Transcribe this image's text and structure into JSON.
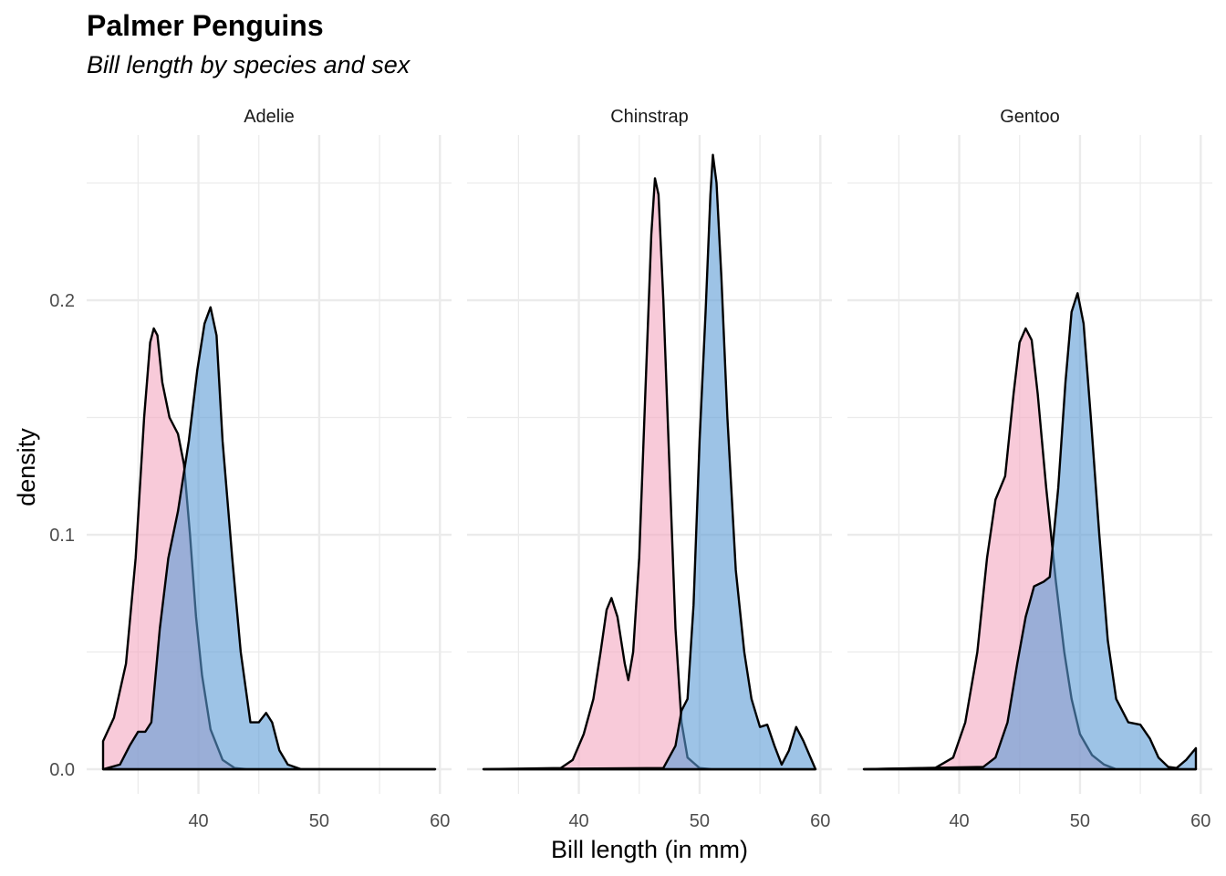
{
  "chart_data": {
    "type": "area",
    "title": "Palmer Penguins",
    "subtitle": "Bill length by species and sex",
    "xlabel": "Bill length (in mm)",
    "ylabel": "density",
    "xlim": [
      32.1,
      59.6
    ],
    "ylim": [
      0,
      0.265
    ],
    "x_ticks": [
      40,
      50,
      60
    ],
    "y_ticks": [
      0.0,
      0.1,
      0.2
    ],
    "y_tick_labels": [
      "0.0",
      "0.1",
      "0.2"
    ],
    "grid": true,
    "legend": "none",
    "colors": {
      "female": "#f4a7c0",
      "male": "#5b9bd5",
      "outline": "#000000",
      "grid": "#ebebeb"
    },
    "series_keys": [
      "female",
      "male"
    ],
    "panels": [
      {
        "name": "Adelie",
        "series": [
          {
            "key": "female",
            "points": [
              [
                32.1,
                0.012
              ],
              [
                33,
                0.022
              ],
              [
                34,
                0.045
              ],
              [
                34.8,
                0.09
              ],
              [
                35.5,
                0.15
              ],
              [
                36.0,
                0.182
              ],
              [
                36.3,
                0.188
              ],
              [
                36.6,
                0.185
              ],
              [
                37,
                0.165
              ],
              [
                37.6,
                0.15
              ],
              [
                38.3,
                0.143
              ],
              [
                38.8,
                0.13
              ],
              [
                39.3,
                0.1
              ],
              [
                39.8,
                0.065
              ],
              [
                40.3,
                0.04
              ],
              [
                41,
                0.017
              ],
              [
                42,
                0.004
              ],
              [
                43,
                0.0005
              ],
              [
                44,
                0
              ],
              [
                59.6,
                0
              ]
            ]
          },
          {
            "key": "male",
            "points": [
              [
                32.1,
                0
              ],
              [
                33.5,
                0.002
              ],
              [
                34.3,
                0.01
              ],
              [
                35,
                0.016
              ],
              [
                35.6,
                0.016
              ],
              [
                36.1,
                0.02
              ],
              [
                36.8,
                0.06
              ],
              [
                37.5,
                0.09
              ],
              [
                38.3,
                0.11
              ],
              [
                39.2,
                0.14
              ],
              [
                39.9,
                0.17
              ],
              [
                40.5,
                0.19
              ],
              [
                41,
                0.197
              ],
              [
                41.5,
                0.185
              ],
              [
                42,
                0.14
              ],
              [
                42.8,
                0.09
              ],
              [
                43.5,
                0.05
              ],
              [
                44.3,
                0.02
              ],
              [
                45,
                0.02
              ],
              [
                45.6,
                0.024
              ],
              [
                46.1,
                0.02
              ],
              [
                46.7,
                0.008
              ],
              [
                47.4,
                0.002
              ],
              [
                48.5,
                0
              ],
              [
                59.6,
                0
              ]
            ]
          }
        ]
      },
      {
        "name": "Chinstrap",
        "series": [
          {
            "key": "female",
            "points": [
              [
                32.1,
                0
              ],
              [
                38.5,
                0.0005
              ],
              [
                39.5,
                0.004
              ],
              [
                40.4,
                0.015
              ],
              [
                41.2,
                0.03
              ],
              [
                41.8,
                0.05
              ],
              [
                42.3,
                0.068
              ],
              [
                42.7,
                0.073
              ],
              [
                43.2,
                0.065
              ],
              [
                43.8,
                0.045
              ],
              [
                44.1,
                0.038
              ],
              [
                44.5,
                0.05
              ],
              [
                45,
                0.09
              ],
              [
                45.5,
                0.16
              ],
              [
                46.0,
                0.228
              ],
              [
                46.3,
                0.252
              ],
              [
                46.6,
                0.245
              ],
              [
                47,
                0.2
              ],
              [
                47.5,
                0.13
              ],
              [
                48,
                0.06
              ],
              [
                48.5,
                0.02
              ],
              [
                49,
                0.005
              ],
              [
                50,
                0.0005
              ],
              [
                51,
                0
              ],
              [
                59.6,
                0
              ]
            ]
          },
          {
            "key": "male",
            "points": [
              [
                32.1,
                0
              ],
              [
                47,
                0.0005
              ],
              [
                48,
                0.01
              ],
              [
                48.5,
                0.025
              ],
              [
                49,
                0.03
              ],
              [
                49.5,
                0.07
              ],
              [
                50,
                0.14
              ],
              [
                50.5,
                0.195
              ],
              [
                50.9,
                0.245
              ],
              [
                51.1,
                0.262
              ],
              [
                51.4,
                0.25
              ],
              [
                51.8,
                0.21
              ],
              [
                52.3,
                0.15
              ],
              [
                53,
                0.085
              ],
              [
                53.7,
                0.05
              ],
              [
                54.3,
                0.03
              ],
              [
                55,
                0.018
              ],
              [
                55.6,
                0.019
              ],
              [
                56.2,
                0.01
              ],
              [
                56.8,
                0.002
              ],
              [
                57.4,
                0.008
              ],
              [
                58,
                0.018
              ],
              [
                58.6,
                0.012
              ],
              [
                59.6,
                0
              ]
            ]
          }
        ]
      },
      {
        "name": "Gentoo",
        "series": [
          {
            "key": "female",
            "points": [
              [
                32.1,
                0
              ],
              [
                38,
                0.0005
              ],
              [
                39.5,
                0.005
              ],
              [
                40.5,
                0.02
              ],
              [
                41.5,
                0.05
              ],
              [
                42.3,
                0.09
              ],
              [
                43,
                0.115
              ],
              [
                43.8,
                0.125
              ],
              [
                44.5,
                0.16
              ],
              [
                45,
                0.182
              ],
              [
                45.5,
                0.188
              ],
              [
                46,
                0.183
              ],
              [
                46.5,
                0.16
              ],
              [
                47.2,
                0.12
              ],
              [
                48,
                0.08
              ],
              [
                48.7,
                0.05
              ],
              [
                49.3,
                0.03
              ],
              [
                50,
                0.015
              ],
              [
                51,
                0.006
              ],
              [
                52,
                0.002
              ],
              [
                53,
                0
              ],
              [
                59.6,
                0
              ]
            ]
          },
          {
            "key": "male",
            "points": [
              [
                32.1,
                0
              ],
              [
                42,
                0.001
              ],
              [
                43,
                0.005
              ],
              [
                44,
                0.02
              ],
              [
                44.8,
                0.045
              ],
              [
                45.5,
                0.065
              ],
              [
                46.2,
                0.078
              ],
              [
                47,
                0.08
              ],
              [
                47.5,
                0.082
              ],
              [
                48.2,
                0.12
              ],
              [
                48.8,
                0.165
              ],
              [
                49.3,
                0.195
              ],
              [
                49.8,
                0.203
              ],
              [
                50.3,
                0.19
              ],
              [
                50.9,
                0.15
              ],
              [
                51.6,
                0.1
              ],
              [
                52.3,
                0.055
              ],
              [
                53,
                0.03
              ],
              [
                54,
                0.02
              ],
              [
                55,
                0.019
              ],
              [
                55.8,
                0.013
              ],
              [
                56.5,
                0.005
              ],
              [
                57.3,
                0.001
              ],
              [
                58,
                0.0005
              ],
              [
                58.8,
                0.004
              ],
              [
                59.6,
                0.009
              ]
            ]
          }
        ]
      }
    ]
  }
}
